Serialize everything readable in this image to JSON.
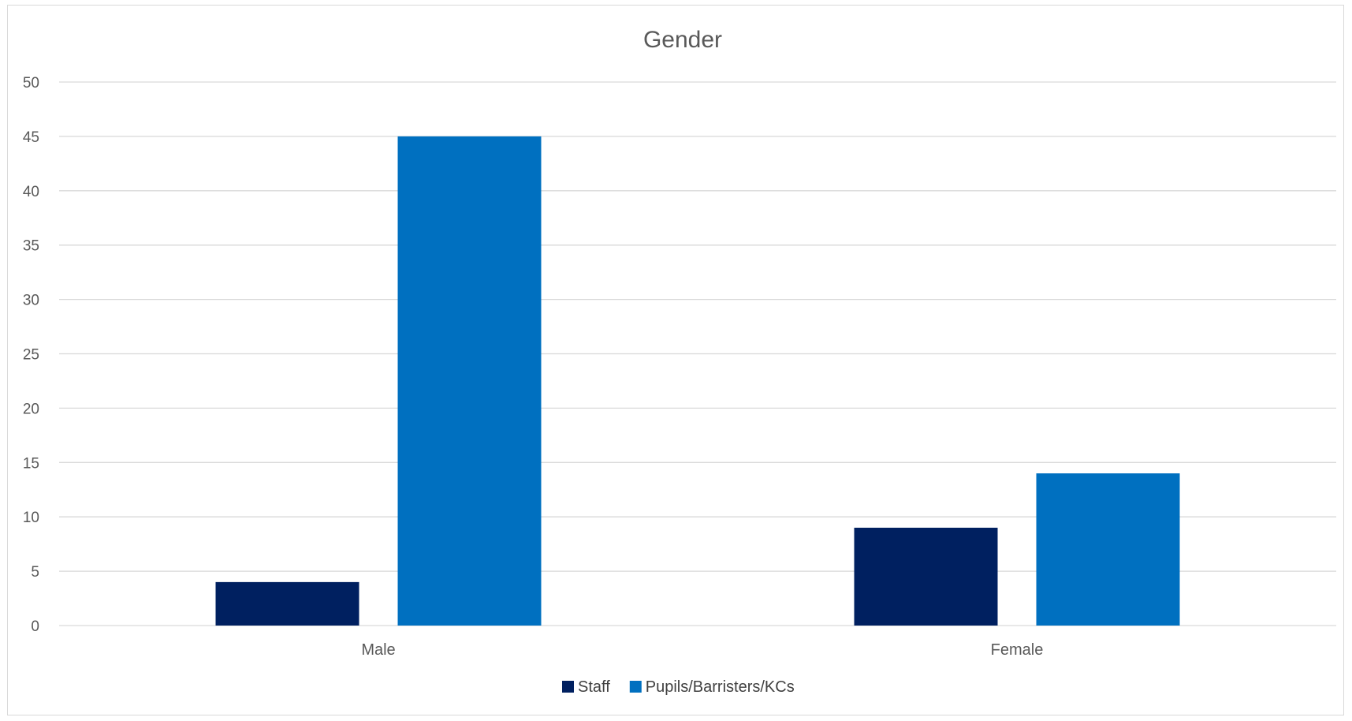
{
  "chart_data": {
    "type": "bar",
    "title": "Gender",
    "categories": [
      "Male",
      "Female"
    ],
    "series": [
      {
        "name": "Staff",
        "values": [
          4,
          9
        ],
        "color": "#002060"
      },
      {
        "name": "Pupils/Barristers/KCs",
        "values": [
          45,
          14
        ],
        "color": "#0070C0"
      }
    ],
    "ylim": [
      0,
      50
    ],
    "yticks": [
      0,
      5,
      10,
      15,
      20,
      25,
      30,
      35,
      40,
      45,
      50
    ],
    "grid": true,
    "legend_position": "bottom",
    "gridline_color": "#d9d9d9",
    "text_color": "#595959"
  }
}
